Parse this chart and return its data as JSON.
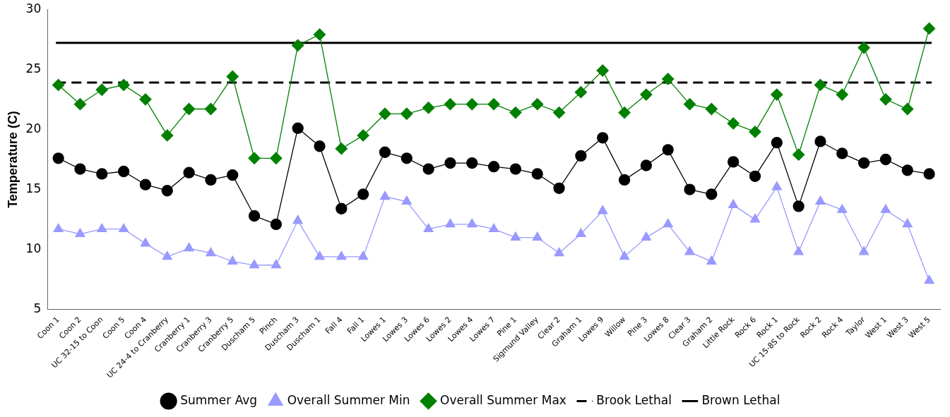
{
  "chart_data": {
    "type": "line",
    "ylabel": "Temperature (C)",
    "categories": [
      "Coon 1",
      "Coon 2",
      "UC 32-15 to Coon",
      "Coon 5",
      "Coon 4",
      "UC 24-4 to Cranberry",
      "Cranberry 1",
      "Cranberry 3",
      "Cranberry 5",
      "Duscham 5",
      "Pinch",
      "Duscham 3",
      "Duscham 1",
      "Fall 4",
      "Fall 1",
      "Lowes 1",
      "Lowes 3",
      "Lowes 6",
      "Lowes 2",
      "Lowes 4",
      "Lowes 7",
      "Pine 1",
      "Sigmund Valley",
      "Clear 2",
      "Graham 1",
      "Lowes 9",
      "Willow",
      "Pine 3",
      "Lowes 8",
      "Clear 3",
      "Graham 2",
      "Little Rock",
      "Rock 6",
      "Rock 1",
      "UC 15-8S to Rock",
      "Rock 2",
      "Rock 4",
      "Taylor",
      "West 1",
      "West 3",
      "West 5"
    ],
    "series": [
      {
        "name": "Summer Avg",
        "color": "#000000",
        "marker": "circle",
        "values": [
          17.6,
          16.7,
          16.3,
          16.5,
          15.4,
          14.9,
          16.4,
          15.8,
          16.2,
          12.8,
          12.1,
          20.1,
          18.6,
          13.4,
          14.6,
          18.1,
          17.6,
          16.7,
          17.2,
          17.2,
          16.9,
          16.7,
          16.3,
          15.1,
          17.8,
          19.3,
          15.8,
          17.0,
          18.3,
          15.0,
          14.6,
          17.3,
          16.1,
          18.9,
          13.6,
          19.0,
          18.0,
          17.2,
          17.5,
          16.6,
          16.3
        ]
      },
      {
        "name": "Overall Summer Min",
        "color": "#9999ff",
        "marker": "triangle",
        "values": [
          11.7,
          11.3,
          11.7,
          11.7,
          10.5,
          9.4,
          10.1,
          9.7,
          9.0,
          8.7,
          8.7,
          12.4,
          9.4,
          9.4,
          9.4,
          14.4,
          14.0,
          11.7,
          12.1,
          12.1,
          11.7,
          11.0,
          11.0,
          9.7,
          11.3,
          13.2,
          9.4,
          11.0,
          12.1,
          9.8,
          9.0,
          13.7,
          12.5,
          15.2,
          9.8,
          14.0,
          13.3,
          9.8,
          13.3,
          12.1,
          7.4
        ]
      },
      {
        "name": "Overall Summer Max",
        "color": "#008000",
        "marker": "diamond",
        "values": [
          23.7,
          22.1,
          23.3,
          23.7,
          22.5,
          19.5,
          21.7,
          21.7,
          24.4,
          17.6,
          17.6,
          27.0,
          27.9,
          18.4,
          19.5,
          21.3,
          21.3,
          21.8,
          22.1,
          22.1,
          22.1,
          21.4,
          22.1,
          21.4,
          23.1,
          24.9,
          21.4,
          22.9,
          24.2,
          22.1,
          21.7,
          20.5,
          19.8,
          22.9,
          17.9,
          23.7,
          22.9,
          26.8,
          22.5,
          21.7,
          28.4
        ]
      }
    ],
    "ref_lines": [
      {
        "axis": "y",
        "value": 23.9,
        "label": "Brook Lethal",
        "color": "#000000",
        "line_style": "dashed"
      },
      {
        "axis": "y",
        "value": 27.2,
        "label": "Brown Lethal",
        "color": "#000000",
        "line_style": "solid"
      }
    ],
    "ylim": [
      5,
      30
    ],
    "yticks": [
      5,
      10,
      15,
      20,
      25,
      30
    ],
    "grid": false,
    "legend": "bottom"
  }
}
